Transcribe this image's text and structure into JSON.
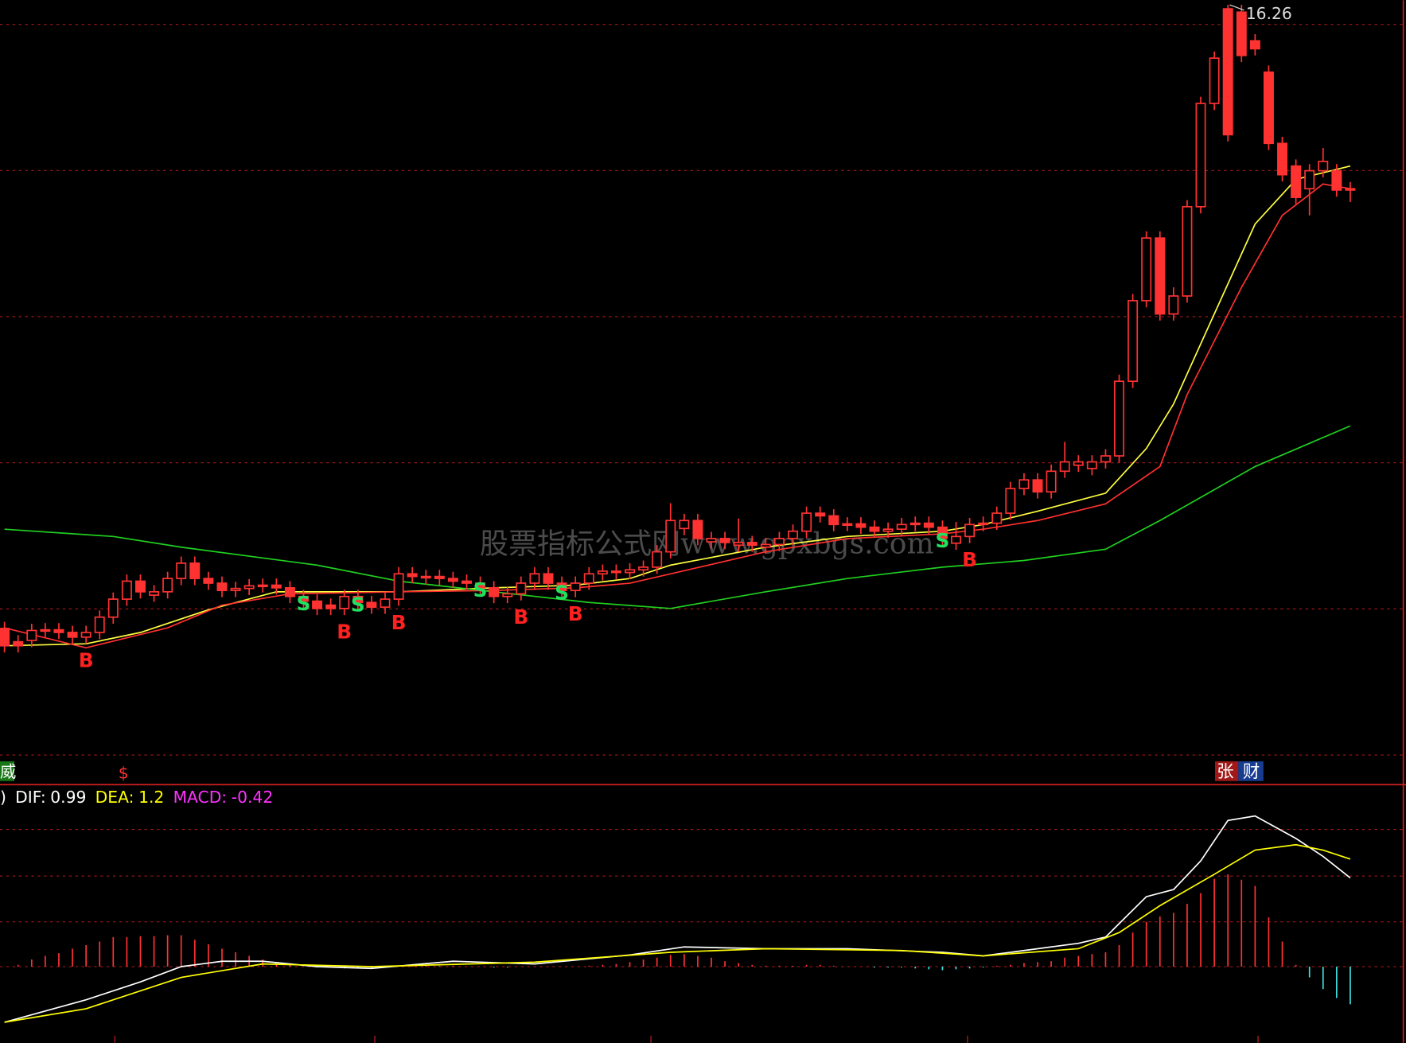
{
  "chart_data": [
    {
      "type": "candlestick",
      "categories": [
        null,
        null,
        null,
        null,
        null,
        null,
        null,
        null,
        null,
        null,
        null,
        null,
        null,
        null,
        null,
        null,
        null,
        null,
        null,
        null,
        null,
        null,
        null,
        null,
        null,
        null,
        null,
        null,
        null,
        null,
        null,
        null,
        null,
        null,
        null,
        null,
        null,
        null,
        null,
        null,
        null,
        null,
        null,
        null,
        null,
        null,
        null,
        null,
        null,
        null,
        null,
        null,
        null,
        null,
        null,
        null,
        null,
        null,
        null,
        null,
        null,
        null,
        null,
        null,
        null,
        null,
        null,
        null,
        null,
        null,
        null,
        null,
        null,
        null,
        null,
        null,
        null,
        null,
        null,
        null,
        null,
        null,
        null,
        null,
        null,
        null,
        null,
        null,
        null,
        null,
        null,
        null,
        null,
        null,
        null,
        null,
        null,
        null,
        null,
        null
      ],
      "open": [
        6.9,
        6.7,
        6.72,
        6.87,
        6.88,
        6.84,
        6.77,
        6.84,
        7.07,
        7.34,
        7.61,
        7.4,
        7.45,
        7.65,
        7.88,
        7.65,
        7.58,
        7.47,
        7.5,
        7.54,
        7.55,
        7.51,
        7.38,
        7.31,
        7.25,
        7.2,
        7.38,
        7.29,
        7.22,
        7.34,
        7.72,
        7.66,
        7.68,
        7.65,
        7.61,
        7.58,
        7.51,
        7.38,
        7.42,
        7.58,
        7.72,
        7.58,
        7.47,
        7.58,
        7.72,
        7.76,
        7.74,
        7.78,
        7.82,
        8.05,
        8.4,
        8.52,
        8.2,
        8.25,
        8.15,
        8.19,
        8.12,
        8.16,
        8.25,
        8.36,
        8.63,
        8.59,
        8.46,
        8.47,
        8.42,
        8.36,
        8.39,
        8.46,
        8.48,
        8.42,
        8.18,
        8.28,
        8.46,
        8.48,
        8.63,
        9.0,
        9.13,
        8.95,
        9.26,
        9.35,
        9.3,
        9.4,
        9.49,
        10.61,
        11.82,
        12.76,
        11.62,
        11.89,
        13.23,
        14.78,
        16.2,
        16.15,
        15.72,
        15.25,
        14.18,
        13.84,
        13.5,
        13.77,
        13.77,
        13.5
      ],
      "high": [
        7.0,
        6.8,
        6.97,
        6.98,
        6.98,
        6.94,
        6.94,
        7.17,
        7.44,
        7.71,
        7.71,
        7.55,
        7.75,
        7.98,
        7.98,
        7.75,
        7.68,
        7.6,
        7.64,
        7.65,
        7.65,
        7.61,
        7.48,
        7.41,
        7.35,
        7.48,
        7.48,
        7.39,
        7.44,
        7.82,
        7.82,
        7.78,
        7.78,
        7.75,
        7.71,
        7.68,
        7.61,
        7.52,
        7.68,
        7.82,
        7.82,
        7.68,
        7.68,
        7.82,
        7.86,
        7.86,
        7.88,
        7.92,
        8.15,
        8.78,
        8.62,
        8.62,
        8.35,
        8.35,
        8.55,
        8.29,
        8.26,
        8.35,
        8.46,
        8.73,
        8.73,
        8.69,
        8.57,
        8.57,
        8.52,
        8.49,
        8.56,
        8.58,
        8.58,
        8.52,
        8.5,
        8.56,
        8.58,
        8.73,
        9.1,
        9.23,
        9.23,
        9.36,
        9.7,
        9.5,
        9.5,
        9.59,
        10.71,
        11.92,
        12.86,
        12.86,
        12.02,
        13.33,
        14.88,
        15.56,
        16.26,
        16.26,
        15.82,
        15.35,
        14.28,
        13.94,
        13.87,
        14.11,
        13.87,
        13.6
      ],
      "low": [
        6.54,
        6.54,
        6.62,
        6.77,
        6.74,
        6.67,
        6.67,
        6.74,
        6.97,
        7.24,
        7.35,
        7.3,
        7.35,
        7.55,
        7.55,
        7.48,
        7.37,
        7.37,
        7.4,
        7.44,
        7.41,
        7.28,
        7.21,
        7.1,
        7.1,
        7.1,
        7.19,
        7.12,
        7.12,
        7.24,
        7.58,
        7.56,
        7.55,
        7.51,
        7.48,
        7.41,
        7.28,
        7.28,
        7.32,
        7.48,
        7.48,
        7.37,
        7.37,
        7.48,
        7.62,
        7.64,
        7.64,
        7.68,
        7.72,
        7.95,
        8.3,
        8.15,
        8.1,
        8.09,
        8.05,
        8.05,
        8.02,
        8.06,
        8.15,
        8.26,
        8.49,
        8.36,
        8.36,
        8.32,
        8.26,
        8.26,
        8.29,
        8.36,
        8.32,
        8.15,
        8.08,
        8.18,
        8.36,
        8.38,
        8.53,
        8.9,
        8.85,
        8.85,
        9.16,
        9.25,
        9.2,
        9.3,
        9.39,
        10.51,
        11.72,
        11.52,
        11.52,
        11.79,
        13.13,
        14.68,
        14.21,
        15.4,
        15.5,
        14.08,
        13.61,
        13.27,
        13.1,
        13.67,
        13.38,
        13.3
      ],
      "close": [
        6.64,
        6.64,
        6.87,
        6.88,
        6.84,
        6.77,
        6.84,
        7.07,
        7.34,
        7.61,
        7.45,
        7.45,
        7.65,
        7.88,
        7.65,
        7.58,
        7.47,
        7.5,
        7.54,
        7.55,
        7.51,
        7.38,
        7.31,
        7.2,
        7.2,
        7.38,
        7.29,
        7.22,
        7.34,
        7.72,
        7.68,
        7.68,
        7.65,
        7.61,
        7.58,
        7.51,
        7.38,
        7.42,
        7.58,
        7.72,
        7.58,
        7.47,
        7.58,
        7.72,
        7.76,
        7.74,
        7.78,
        7.82,
        8.05,
        8.52,
        8.52,
        8.25,
        8.25,
        8.19,
        8.19,
        8.15,
        8.16,
        8.25,
        8.36,
        8.63,
        8.59,
        8.46,
        8.47,
        8.42,
        8.36,
        8.39,
        8.46,
        8.48,
        8.42,
        8.25,
        8.28,
        8.46,
        8.48,
        8.63,
        9.0,
        9.13,
        8.95,
        9.26,
        9.4,
        9.4,
        9.4,
        9.49,
        10.61,
        11.82,
        12.76,
        11.62,
        11.89,
        13.23,
        14.78,
        15.46,
        14.31,
        15.5,
        15.6,
        14.18,
        13.71,
        13.37,
        13.77,
        13.91,
        13.48,
        13.48
      ],
      "color": "#ff3232",
      "ylim": [
        5,
        16.33
      ],
      "max_label": 16.26,
      "series": [
        {
          "color": "#ffff40",
          "x": [
            0,
            6,
            10,
            15,
            20,
            29,
            36,
            42,
            46,
            49,
            56,
            62,
            69,
            72,
            76,
            81,
            84,
            86,
            89,
            92,
            95,
            99
          ],
          "values": [
            6.64,
            6.67,
            6.84,
            7.18,
            7.45,
            7.45,
            7.51,
            7.55,
            7.65,
            7.85,
            8.12,
            8.28,
            8.36,
            8.46,
            8.66,
            8.93,
            9.6,
            10.27,
            11.62,
            12.97,
            13.64,
            13.84
          ]
        },
        {
          "color": "#ff3030",
          "x": [
            0,
            6,
            12,
            16,
            21,
            29,
            36,
            42,
            46,
            49,
            56,
            62,
            69,
            72,
            76,
            81,
            85,
            87,
            91,
            94,
            97,
            99
          ],
          "values": [
            6.91,
            6.61,
            6.91,
            7.25,
            7.42,
            7.45,
            7.47,
            7.51,
            7.58,
            7.72,
            8.05,
            8.25,
            8.32,
            8.39,
            8.52,
            8.77,
            9.33,
            10.41,
            12.02,
            13.1,
            13.57,
            13.5
          ]
        },
        {
          "color": "#20d020",
          "x": [
            0,
            8,
            13,
            23,
            29,
            36,
            43,
            49,
            56,
            62,
            69,
            75,
            81,
            85,
            92,
            99
          ],
          "values": [
            8.39,
            8.28,
            8.12,
            7.85,
            7.61,
            7.45,
            7.29,
            7.2,
            7.45,
            7.65,
            7.82,
            7.92,
            8.09,
            8.52,
            9.33,
            9.94
          ]
        }
      ],
      "signals": [
        {
          "text": "B",
          "x": 6
        },
        {
          "text": "S",
          "x": 22
        },
        {
          "text": "B",
          "x": 25
        },
        {
          "text": "S",
          "x": 26
        },
        {
          "text": "B",
          "x": 29
        },
        {
          "text": "S",
          "x": 35
        },
        {
          "text": "B",
          "x": 38
        },
        {
          "text": "S",
          "x": 41
        },
        {
          "text": "B",
          "x": 42
        },
        {
          "text": "S",
          "x": 69
        },
        {
          "text": "B",
          "x": 71
        }
      ],
      "watermark": "股票指标公式网www.gpxbgs.com",
      "bottom_left_label": "威",
      "bottom_mark": "$",
      "bottom_right_labels": [
        "张",
        "财"
      ]
    },
    {
      "type": "macd",
      "prefix": ")",
      "ylim": [
        -0.82,
        2.03
      ],
      "series": [
        {
          "name": "DIF:",
          "color": "#ffffff",
          "x": [
            0,
            6,
            10,
            13,
            16,
            19,
            23,
            27,
            33,
            39,
            46,
            50,
            56,
            62,
            69,
            72,
            75,
            79,
            81,
            84,
            86,
            88,
            90,
            92,
            95,
            97,
            99
          ],
          "values": [
            -0.62,
            -0.37,
            -0.17,
            0,
            0.06,
            0.06,
            0,
            -0.02,
            0.06,
            0.03,
            0.13,
            0.22,
            0.2,
            0.2,
            0.16,
            0.12,
            0.18,
            0.26,
            0.33,
            0.78,
            0.86,
            1.18,
            1.63,
            1.68,
            1.43,
            1.23,
            0.99
          ]
        },
        {
          "name": "DEA:",
          "color": "#ffff00",
          "x": [
            0,
            6,
            13,
            19,
            27,
            39,
            49,
            56,
            66,
            72,
            79,
            82,
            85,
            89,
            92,
            95,
            97,
            99
          ],
          "values": [
            -0.62,
            -0.47,
            -0.12,
            0.03,
            0,
            0.05,
            0.16,
            0.2,
            0.18,
            0.12,
            0.2,
            0.38,
            0.68,
            1.03,
            1.3,
            1.36,
            1.3,
            1.2
          ]
        },
        {
          "name": "MACD:",
          "color": "#ff33ff",
          "up_color": "#ff3232",
          "down_color": "#40e0e0",
          "values": [
            0,
            0.02,
            0.08,
            0.12,
            0.15,
            0.2,
            0.24,
            0.28,
            0.33,
            0.33,
            0.34,
            0.34,
            0.35,
            0.35,
            0.3,
            0.25,
            0.2,
            0.16,
            0.12,
            0.08,
            0.04,
            0.02,
            0,
            -0.01,
            -0.01,
            -0.02,
            -0.02,
            -0.02,
            -0.01,
            0,
            0.01,
            0.01,
            0.01,
            0.01,
            0,
            0,
            -0.01,
            -0.01,
            0,
            0,
            0,
            0,
            0,
            0.01,
            0.02,
            0.03,
            0.05,
            0.08,
            0.1,
            0.13,
            0.14,
            0.12,
            0.1,
            0.06,
            0.04,
            0.02,
            0.01,
            0.01,
            0.01,
            0.02,
            0.02,
            0.01,
            0,
            0,
            -0.01,
            -0.01,
            -0.01,
            -0.02,
            -0.03,
            -0.04,
            -0.03,
            -0.02,
            -0.01,
            0.01,
            0.02,
            0.04,
            0.05,
            0.06,
            0.1,
            0.12,
            0.14,
            0.16,
            0.24,
            0.38,
            0.5,
            0.56,
            0.6,
            0.7,
            0.82,
            0.98,
            1.03,
            0.97,
            0.9,
            0.55,
            0.28,
            0.02,
            -0.12,
            -0.25,
            -0.35,
            -0.42
          ]
        }
      ]
    }
  ]
}
